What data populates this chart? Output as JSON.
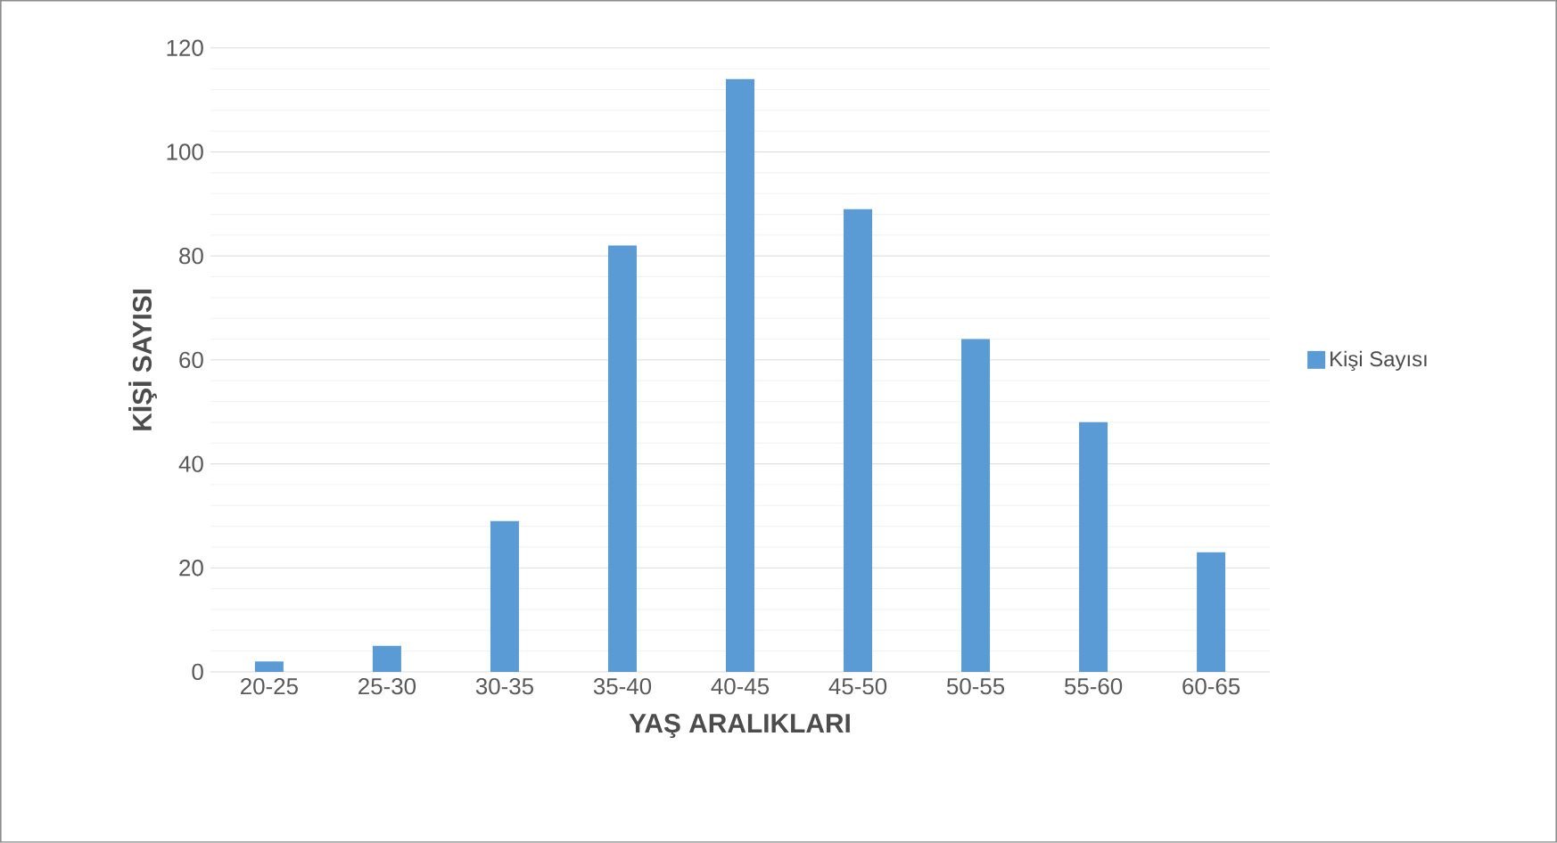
{
  "chart_data": {
    "type": "bar",
    "xlabel": "YAŞ ARALIKLARI",
    "ylabel": "KİŞİ SAYISI",
    "categories": [
      "20-25",
      "25-30",
      "30-35",
      "35-40",
      "40-45",
      "45-50",
      "50-55",
      "55-60",
      "60-65"
    ],
    "series": [
      {
        "name": "Kişi Sayısı",
        "color": "#5b9bd5",
        "values": [
          2,
          5,
          29,
          82,
          114,
          89,
          64,
          48,
          23
        ]
      }
    ],
    "ylim": [
      0,
      120
    ],
    "yticks": [
      0,
      20,
      40,
      60,
      80,
      100,
      120
    ],
    "grid": "y",
    "legend": "right"
  }
}
